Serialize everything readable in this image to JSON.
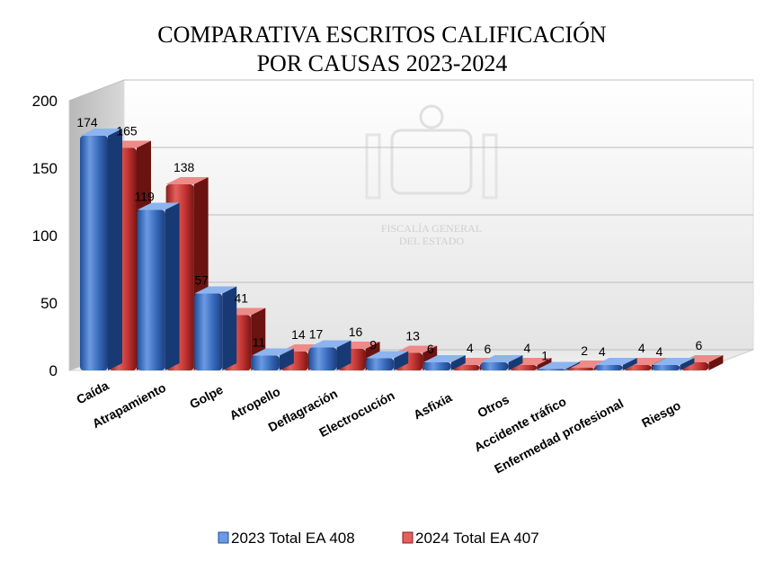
{
  "chart_data": {
    "type": "bar",
    "title_lines": [
      "COMPARATIVA ESCRITOS CALIFICACIÓN",
      "POR CAUSAS 2023-2024"
    ],
    "categories": [
      "Caída",
      "Atrapamiento",
      "Golpe",
      "Atropello",
      "Deflagración",
      "Electrocución",
      "Asfixia",
      "Otros",
      "Accidente tráfico",
      "Enfermedad profesional",
      "Riesgo"
    ],
    "series": [
      {
        "name": "2023 Total EA 408",
        "values": [
          174,
          119,
          57,
          11,
          17,
          9,
          6,
          6,
          1,
          4,
          4
        ],
        "color": "#3a6fc4"
      },
      {
        "name": "2024 Total EA 407",
        "values": [
          165,
          138,
          41,
          14,
          16,
          13,
          4,
          4,
          2,
          4,
          6
        ],
        "color": "#c8322f"
      }
    ],
    "ylim": [
      0,
      200
    ],
    "yticks": [
      0,
      50,
      100,
      150,
      200
    ],
    "grid": true,
    "legend_position": "bottom",
    "watermark_lines": [
      "FISCALÍA GENERAL",
      "DEL ESTADO"
    ]
  }
}
